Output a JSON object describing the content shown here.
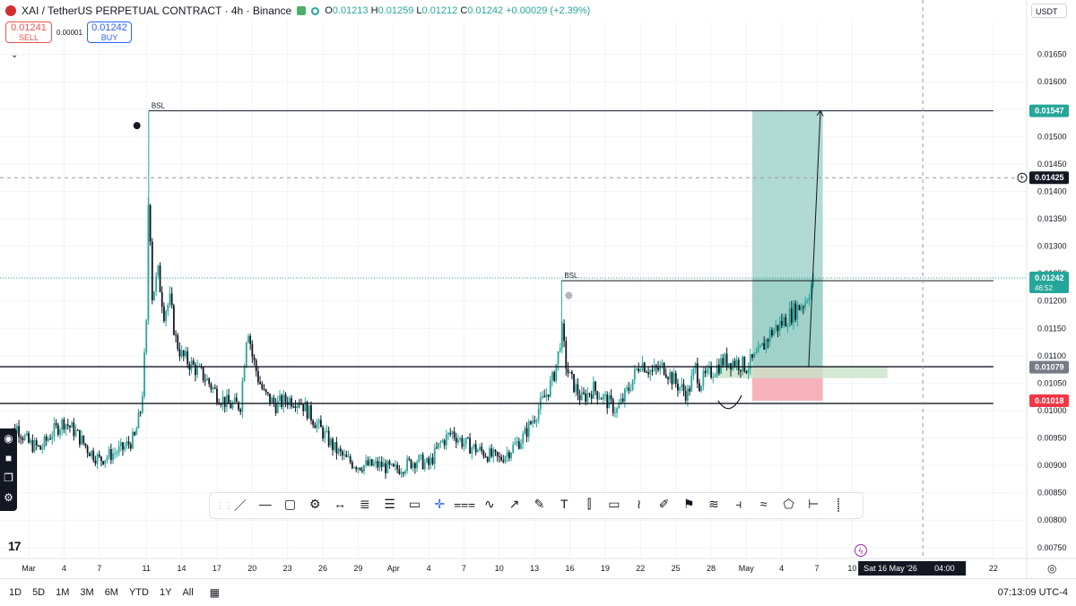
{
  "header": {
    "symbol_title": "XAI / TetherUS PERPETUAL CONTRACT · 4h · Binance",
    "open_label": "O",
    "open": "0.01213",
    "high_label": "H",
    "high": "0.01259",
    "low_label": "L",
    "low": "0.01212",
    "close_label": "C",
    "close": "0.01242",
    "change": "+0.00029 (+2.39%)"
  },
  "trade": {
    "sell_price": "0.01241",
    "sell_label": "SELL",
    "spread": "0.00001",
    "buy_price": "0.01242",
    "buy_label": "BUY"
  },
  "currency_button": "USDT",
  "draw_tools": [
    "／",
    "―",
    "▢",
    "⚙",
    "↔",
    "≣",
    "☰",
    "▭",
    "✛",
    "⩶",
    "∿",
    "↗",
    "✎",
    "T",
    "⫿",
    "▭",
    "≀",
    "✐",
    "⚑",
    "≋",
    "⫞",
    "≈",
    "⬠",
    "⊢",
    "⸽"
  ],
  "bottom_bar": {
    "ranges": [
      "1D",
      "5D",
      "1M",
      "3M",
      "6M",
      "YTD",
      "1Y",
      "All"
    ],
    "clock": "07:13:09 UTC-4"
  },
  "colors": {
    "up": "#26a69a",
    "down": "#131722",
    "target_zone": "#9fd1c9",
    "stop_zone": "#f4a6ad",
    "entry_band": "#c9e3c9",
    "label_green": "#26a69a",
    "label_red": "#f23645",
    "label_gray": "#787b86",
    "grid": "#f0f3fa"
  },
  "chart_data": {
    "type": "candlestick",
    "ylim": [
      0.0073,
      0.0171
    ],
    "y_ticks": [
      "0.00750",
      "0.00800",
      "0.00850",
      "0.00900",
      "0.00950",
      "0.01000",
      "0.01050",
      "0.01100",
      "0.01150",
      "0.01200",
      "0.01250",
      "0.01300",
      "0.01350",
      "0.01400",
      "0.01450",
      "0.01500",
      "0.01550",
      "0.01600",
      "0.01650"
    ],
    "x_ticks": [
      {
        "label": "Mar",
        "d": 0
      },
      {
        "label": "4",
        "d": 3
      },
      {
        "label": "7",
        "d": 6
      },
      {
        "label": "11",
        "d": 10
      },
      {
        "label": "14",
        "d": 13
      },
      {
        "label": "17",
        "d": 16
      },
      {
        "label": "20",
        "d": 19
      },
      {
        "label": "23",
        "d": 22
      },
      {
        "label": "26",
        "d": 25
      },
      {
        "label": "29",
        "d": 28
      },
      {
        "label": "Apr",
        "d": 31
      },
      {
        "label": "4",
        "d": 34
      },
      {
        "label": "7",
        "d": 37
      },
      {
        "label": "10",
        "d": 40
      },
      {
        "label": "13",
        "d": 43
      },
      {
        "label": "16",
        "d": 46
      },
      {
        "label": "19",
        "d": 49
      },
      {
        "label": "22",
        "d": 52
      },
      {
        "label": "25",
        "d": 55
      },
      {
        "label": "28",
        "d": 58
      },
      {
        "label": "May",
        "d": 61
      },
      {
        "label": "4",
        "d": 64
      },
      {
        "label": "7",
        "d": 67
      },
      {
        "label": "10",
        "d": 70
      },
      {
        "label": "22",
        "d": 82
      }
    ],
    "crosshair_date_label": "Sat 16 May '26",
    "crosshair_time_label": "04:00",
    "crosshair_day": 76,
    "crosshair_price": 0.01425,
    "crosshair_price_label": "0.01425",
    "close_path": [
      [
        -2,
        0.0095
      ],
      [
        -1,
        0.0097
      ],
      [
        0,
        0.0094
      ],
      [
        1,
        0.0093
      ],
      [
        2,
        0.0096
      ],
      [
        3,
        0.0098
      ],
      [
        4,
        0.0096
      ],
      [
        5,
        0.0093
      ],
      [
        6,
        0.0091
      ],
      [
        7,
        0.0092
      ],
      [
        8,
        0.0093
      ],
      [
        9,
        0.0095
      ],
      [
        9.6,
        0.0101
      ],
      [
        10,
        0.0115
      ],
      [
        10.2,
        0.0142
      ],
      [
        10.5,
        0.0121
      ],
      [
        11,
        0.0125
      ],
      [
        11.5,
        0.0118
      ],
      [
        12,
        0.012
      ],
      [
        12.5,
        0.0113
      ],
      [
        13,
        0.011
      ],
      [
        14,
        0.0108
      ],
      [
        15,
        0.0106
      ],
      [
        16,
        0.0103
      ],
      [
        17,
        0.0101
      ],
      [
        18,
        0.0101
      ],
      [
        18.6,
        0.0116
      ],
      [
        19,
        0.011
      ],
      [
        19.5,
        0.0106
      ],
      [
        20,
        0.0103
      ],
      [
        21,
        0.0101
      ],
      [
        22,
        0.0102
      ],
      [
        23,
        0.0102
      ],
      [
        24,
        0.0099
      ],
      [
        25,
        0.0096
      ],
      [
        26,
        0.0093
      ],
      [
        27,
        0.0091
      ],
      [
        28,
        0.009
      ],
      [
        29,
        0.009
      ],
      [
        30,
        0.009
      ],
      [
        31,
        0.0089
      ],
      [
        32,
        0.009
      ],
      [
        33,
        0.0091
      ],
      [
        34,
        0.009
      ],
      [
        35,
        0.0094
      ],
      [
        36,
        0.0096
      ],
      [
        37,
        0.0094
      ],
      [
        38,
        0.0093
      ],
      [
        39,
        0.0092
      ],
      [
        40,
        0.0091
      ],
      [
        41,
        0.0093
      ],
      [
        42,
        0.0095
      ],
      [
        43,
        0.0099
      ],
      [
        44,
        0.0103
      ],
      [
        44.6,
        0.0106
      ],
      [
        45,
        0.011
      ],
      [
        45.3,
        0.0115
      ],
      [
        45.7,
        0.0108
      ],
      [
        46,
        0.0106
      ],
      [
        47,
        0.0102
      ],
      [
        48,
        0.0104
      ],
      [
        49,
        0.0102
      ],
      [
        50,
        0.01
      ],
      [
        51,
        0.0104
      ],
      [
        52,
        0.0109
      ],
      [
        53,
        0.0107
      ],
      [
        54,
        0.0108
      ],
      [
        55,
        0.0105
      ],
      [
        56,
        0.0103
      ],
      [
        56.7,
        0.0108
      ],
      [
        57,
        0.0105
      ],
      [
        58,
        0.0107
      ],
      [
        59,
        0.0109
      ],
      [
        60,
        0.0109
      ],
      [
        61,
        0.0108
      ],
      [
        62,
        0.011
      ],
      [
        63,
        0.0114
      ],
      [
        64,
        0.0116
      ],
      [
        65,
        0.0118
      ],
      [
        66,
        0.012
      ],
      [
        66.7,
        0.0124
      ]
    ],
    "levels": [
      {
        "name": "bsl-top",
        "label": "BSL",
        "price": 0.01547,
        "from_day": 10.2,
        "to_day": 82
      },
      {
        "name": "bsl-mid",
        "label": "BSL",
        "price": 0.01237,
        "from_day": 45.3,
        "to_day": 82
      },
      {
        "name": "support-1",
        "price": 0.0108,
        "from_day": -2.5,
        "to_day": 82
      },
      {
        "name": "support-2",
        "price": 0.01013,
        "from_day": -5,
        "to_day": 82
      }
    ],
    "position": {
      "from_day": 61.5,
      "to_day": 67.5,
      "entry": 0.01079,
      "target": 0.01547,
      "stop": 0.01018
    },
    "entry_band": {
      "from_day": 58.4,
      "to_day": 73,
      "low": 0.01059,
      "high": 0.01081
    },
    "projection": {
      "from": [
        66.3,
        0.0108
      ],
      "to": [
        67.3,
        0.01547
      ]
    },
    "price_labels": [
      {
        "text": "0.01547",
        "price": 0.01547,
        "kind": "green"
      },
      {
        "text": "0.01425",
        "price": 0.01425,
        "kind": "crosshair"
      },
      {
        "text": "0.01242",
        "sub": "46:52",
        "price": 0.01242,
        "kind": "green"
      },
      {
        "text": "0.01079",
        "price": 0.01079,
        "kind": "gray"
      },
      {
        "text": "0.01018",
        "price": 0.01018,
        "kind": "red"
      }
    ]
  }
}
